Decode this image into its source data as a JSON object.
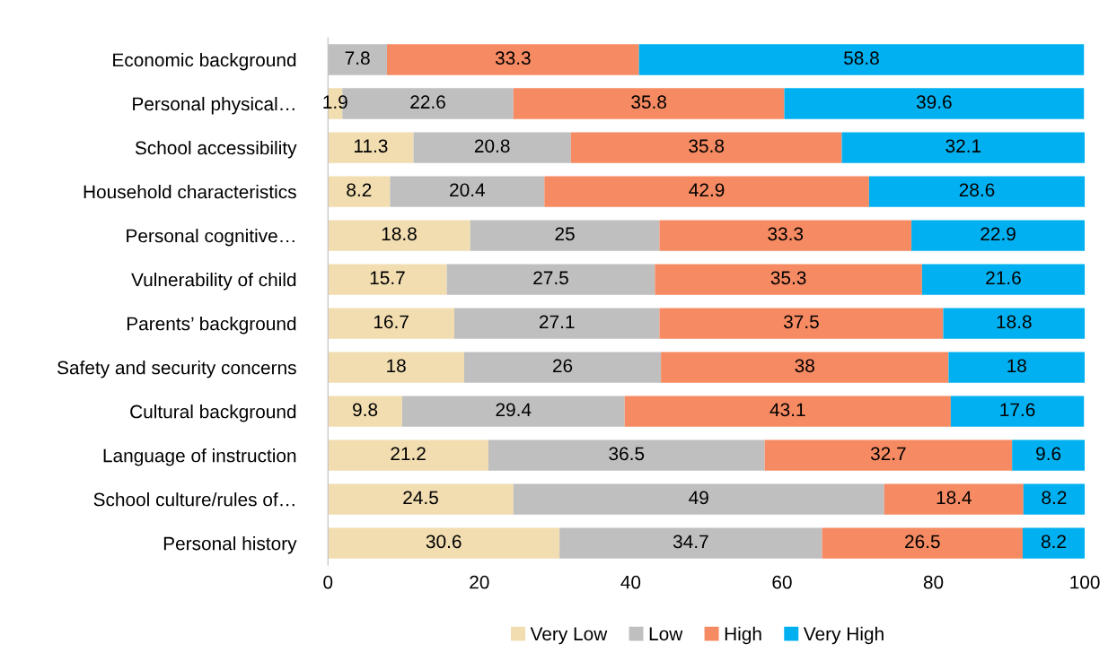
{
  "chart_data": {
    "type": "bar",
    "orientation": "horizontal",
    "stacked": true,
    "categories": [
      "Economic background",
      "Personal physical…",
      "School accessibility",
      "Household characteristics",
      "Personal cognitive…",
      "Vulnerability of child",
      "Parents’ background",
      "Safety and security concerns",
      "Cultural background",
      "Language of instruction",
      "School culture/rules of…",
      "Personal history"
    ],
    "series": [
      {
        "name": "Very Low",
        "color": "#f1ddb0",
        "values": [
          null,
          1.9,
          11.3,
          8.2,
          18.8,
          15.7,
          16.7,
          18,
          9.8,
          21.2,
          24.5,
          30.6
        ]
      },
      {
        "name": "Low",
        "color": "#bfbfbf",
        "values": [
          7.8,
          22.6,
          20.8,
          20.4,
          25,
          27.5,
          27.1,
          26,
          29.4,
          36.5,
          49,
          34.7
        ]
      },
      {
        "name": "High",
        "color": "#f68a62",
        "values": [
          33.3,
          35.8,
          35.8,
          42.9,
          33.3,
          35.3,
          37.5,
          38,
          43.1,
          32.7,
          18.4,
          26.5
        ]
      },
      {
        "name": "Very High",
        "color": "#00b0f0",
        "values": [
          58.8,
          39.6,
          32.1,
          28.6,
          22.9,
          21.6,
          18.8,
          18,
          17.6,
          9.6,
          8.2,
          8.2
        ]
      }
    ],
    "data_labels": true,
    "xlim": [
      0,
      100
    ],
    "xticks": [
      0,
      20,
      40,
      60,
      80,
      100
    ],
    "grid": false,
    "legend": "bottom"
  }
}
